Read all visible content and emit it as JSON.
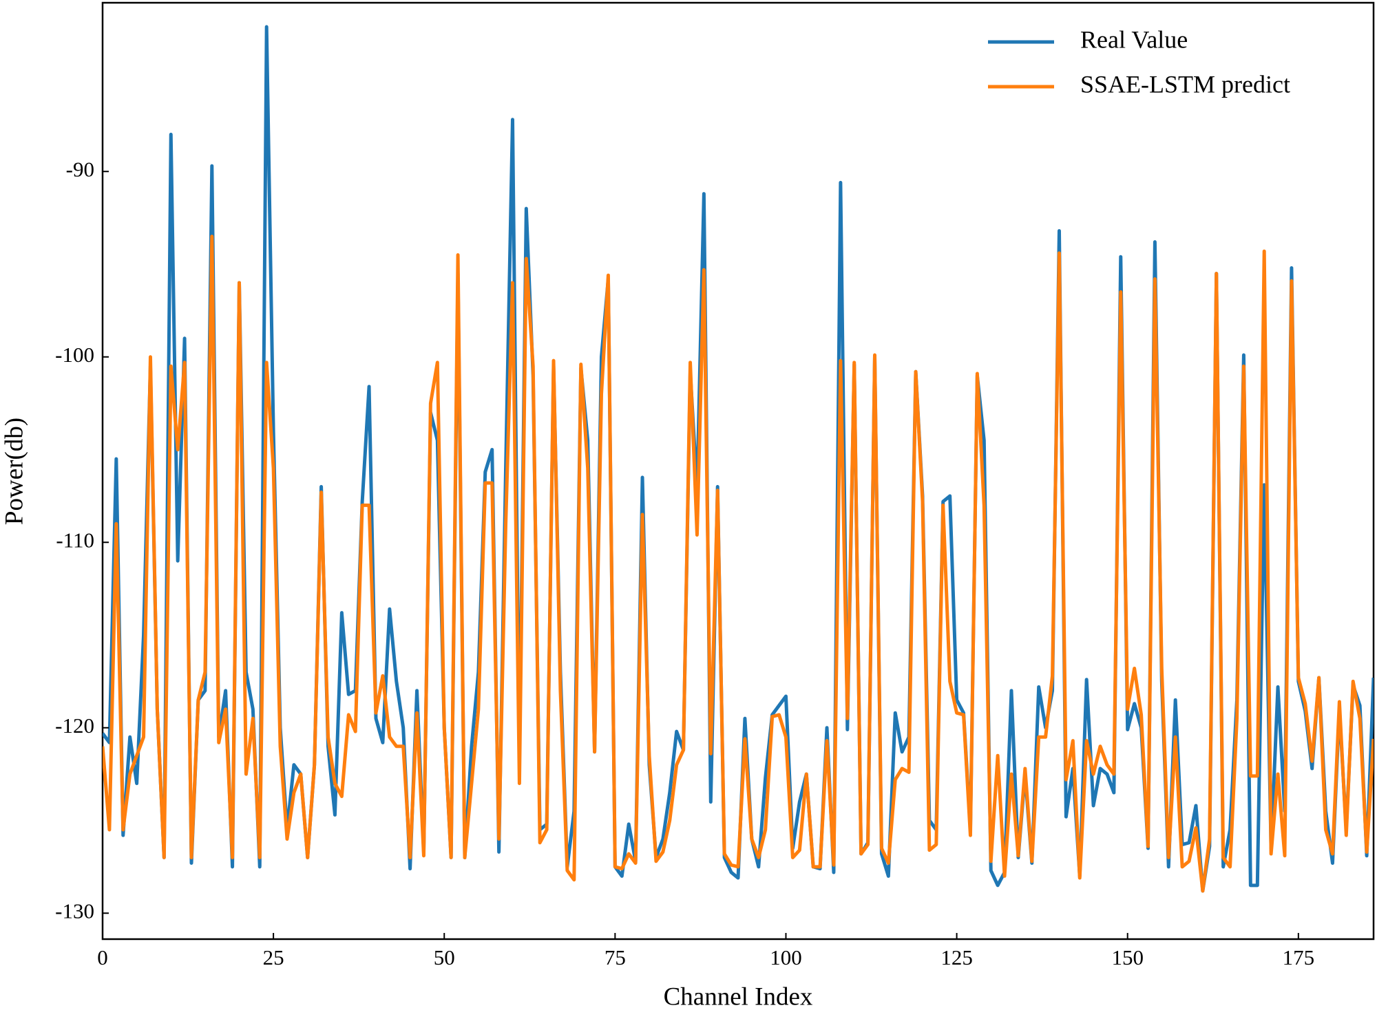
{
  "chart_data": {
    "type": "line",
    "xlabel": "Channel Index",
    "ylabel": "Power(db)",
    "xlim": [
      0,
      186
    ],
    "ylim": [
      -131.4,
      -80.9
    ],
    "xticks": [
      0,
      25,
      50,
      75,
      100,
      125,
      150,
      175
    ],
    "yticks": [
      -130,
      -120,
      -110,
      -100,
      -90
    ],
    "legend": "upper right",
    "grid": false,
    "x": [
      0,
      1,
      2,
      3,
      4,
      5,
      6,
      7,
      8,
      9,
      10,
      11,
      12,
      13,
      14,
      15,
      16,
      17,
      18,
      19,
      20,
      21,
      22,
      23,
      24,
      25,
      26,
      27,
      28,
      29,
      30,
      31,
      32,
      33,
      34,
      35,
      36,
      37,
      38,
      39,
      40,
      41,
      42,
      43,
      44,
      45,
      46,
      47,
      48,
      49,
      50,
      51,
      52,
      53,
      54,
      55,
      56,
      57,
      58,
      59,
      60,
      61,
      62,
      63,
      64,
      65,
      66,
      67,
      68,
      69,
      70,
      71,
      72,
      73,
      74,
      75,
      76,
      77,
      78,
      79,
      80,
      81,
      82,
      83,
      84,
      85,
      86,
      87,
      88,
      89,
      90,
      91,
      92,
      93,
      94,
      95,
      96,
      97,
      98,
      99,
      100,
      101,
      102,
      103,
      104,
      105,
      106,
      107,
      108,
      109,
      110,
      111,
      112,
      113,
      114,
      115,
      116,
      117,
      118,
      119,
      120,
      121,
      122,
      123,
      124,
      125,
      126,
      127,
      128,
      129,
      130,
      131,
      132,
      133,
      134,
      135,
      136,
      137,
      138,
      139,
      140,
      141,
      142,
      143,
      144,
      145,
      146,
      147,
      148,
      149,
      150,
      151,
      152,
      153,
      154,
      155,
      156,
      157,
      158,
      159,
      160,
      161,
      162,
      163,
      164,
      165,
      166,
      167,
      168,
      169,
      170,
      171,
      172,
      173,
      174,
      175,
      176,
      177,
      178,
      179,
      180,
      181,
      182,
      183,
      184,
      185,
      186
    ],
    "series": [
      {
        "name": "Real Value",
        "color": "#1f77b4",
        "values": [
          -120.3,
          -120.8,
          -105.5,
          -125.8,
          -120.5,
          -123,
          -115,
          -100.5,
          -119,
          -127,
          -88,
          -111,
          -99,
          -127.3,
          -118.5,
          -118,
          -89.7,
          -120.5,
          -118,
          -127.5,
          -96,
          -117,
          -119,
          -127.5,
          -82.2,
          -104,
          -120,
          -125.5,
          -122,
          -122.5,
          -127,
          -122,
          -107,
          -121,
          -124.7,
          -113.8,
          -118.2,
          -118,
          -107.8,
          -101.6,
          -119.5,
          -120.8,
          -113.6,
          -117.5,
          -120,
          -127.6,
          -118,
          -126.7,
          -103,
          -104.5,
          -120,
          -127,
          -95.5,
          -127,
          -121,
          -117,
          -106.2,
          -105,
          -126.7,
          -106,
          -87.2,
          -122,
          -92,
          -101,
          -125.5,
          -125.2,
          -100.5,
          -117,
          -127.5,
          -124.5,
          -100.6,
          -104.5,
          -121.3,
          -100,
          -95.8,
          -127.5,
          -128,
          -125.2,
          -127.2,
          -106.5,
          -122,
          -127,
          -126,
          -123.5,
          -120.2,
          -121.2,
          -100.8,
          -107.2,
          -91.2,
          -124,
          -107,
          -127,
          -127.8,
          -128.1,
          -119.5,
          -126,
          -127.5,
          -122.7,
          -119.3,
          -118.8,
          -118.3,
          -126.5,
          -124,
          -122.5,
          -127.5,
          -127.6,
          -120,
          -127.8,
          -90.6,
          -120.1,
          -100.4,
          -126.8,
          -126.2,
          -100,
          -126.8,
          -128,
          -119.2,
          -121.3,
          -120.5,
          -100.8,
          -107.5,
          -125,
          -125.5,
          -107.8,
          -107.5,
          -118.5,
          -119.2,
          -125.5,
          -101,
          -104.5,
          -127.7,
          -128.5,
          -127.8,
          -118,
          -127,
          -122.5,
          -127.3,
          -117.8,
          -120,
          -118,
          -93.2,
          -124.8,
          -122.2,
          -128,
          -117.4,
          -124.2,
          -122.2,
          -122.5,
          -123.5,
          -94.6,
          -120.1,
          -118.7,
          -120,
          -126.5,
          -93.8,
          -117.5,
          -127.5,
          -118.5,
          -126.3,
          -126.2,
          -124.2,
          -128.8,
          -126.4,
          -95.5,
          -127.5,
          -125.5,
          -118.5,
          -99.9,
          -128.5,
          -128.5,
          -106.9,
          -126.5,
          -117.8,
          -124.5,
          -95.2,
          -117.5,
          -119.1,
          -122.2,
          -117.3,
          -124.5,
          -127.3,
          -119,
          -125.5,
          -117.7,
          -118.8,
          -126.9,
          -117.3
        ]
      },
      {
        "name": "SSAE-LSTM predict",
        "color": "#ff7f0e",
        "values": [
          -121,
          -125.5,
          -109,
          -125.5,
          -122.5,
          -121.5,
          -120.5,
          -100,
          -119,
          -127,
          -100.5,
          -105,
          -100.3,
          -127,
          -118.5,
          -117,
          -93.5,
          -120.8,
          -119,
          -127,
          -96,
          -122.5,
          -119.5,
          -127,
          -100.3,
          -106,
          -121,
          -126,
          -123.5,
          -122.5,
          -127,
          -122,
          -107.3,
          -120.5,
          -123,
          -123.7,
          -119.3,
          -120.2,
          -108,
          -108,
          -119.2,
          -117.2,
          -120.5,
          -121,
          -121,
          -127,
          -119.2,
          -126.9,
          -102.5,
          -100.3,
          -120,
          -127,
          -94.5,
          -127,
          -123,
          -119,
          -106.8,
          -106.8,
          -126,
          -109,
          -96,
          -123,
          -94.7,
          -100.5,
          -126.2,
          -125.5,
          -100.2,
          -118,
          -127.7,
          -128.2,
          -100.4,
          -106,
          -121.3,
          -102,
          -95.6,
          -127.5,
          -127.6,
          -126.8,
          -127.3,
          -108.5,
          -121.5,
          -127.2,
          -126.7,
          -125,
          -122,
          -121.2,
          -100.3,
          -109.6,
          -95.3,
          -121.4,
          -107.2,
          -126.8,
          -127.4,
          -127.5,
          -120.6,
          -126,
          -127,
          -125.5,
          -119.4,
          -119.3,
          -120.5,
          -127,
          -126.6,
          -122.5,
          -127.5,
          -127.5,
          -120.7,
          -127.4,
          -100.2,
          -119.5,
          -100.3,
          -126.8,
          -126.3,
          -99.9,
          -126.5,
          -127.3,
          -122.8,
          -122.2,
          -122.4,
          -100.8,
          -107.8,
          -126.6,
          -126.3,
          -108,
          -117.5,
          -119.2,
          -119.3,
          -125.8,
          -100.9,
          -108,
          -127.2,
          -121.5,
          -128,
          -122.5,
          -126.9,
          -122.2,
          -127.2,
          -120.5,
          -120.5,
          -117.2,
          -94.4,
          -122.8,
          -120.7,
          -128.1,
          -120.7,
          -122.5,
          -121,
          -122,
          -122.5,
          -96.5,
          -119,
          -116.8,
          -119.3,
          -126.4,
          -95.8,
          -116.8,
          -127,
          -120.5,
          -127.5,
          -127.2,
          -125.4,
          -128.8,
          -126,
          -95.5,
          -127,
          -127.5,
          -119.5,
          -100.5,
          -122.6,
          -122.6,
          -94.3,
          -126.8,
          -122.5,
          -126.9,
          -95.9,
          -117.3,
          -118.7,
          -121.8,
          -117.3,
          -125.5,
          -126.8,
          -118.6,
          -125.8,
          -117.5,
          -119.5,
          -126.7,
          -120.6
        ]
      }
    ]
  }
}
